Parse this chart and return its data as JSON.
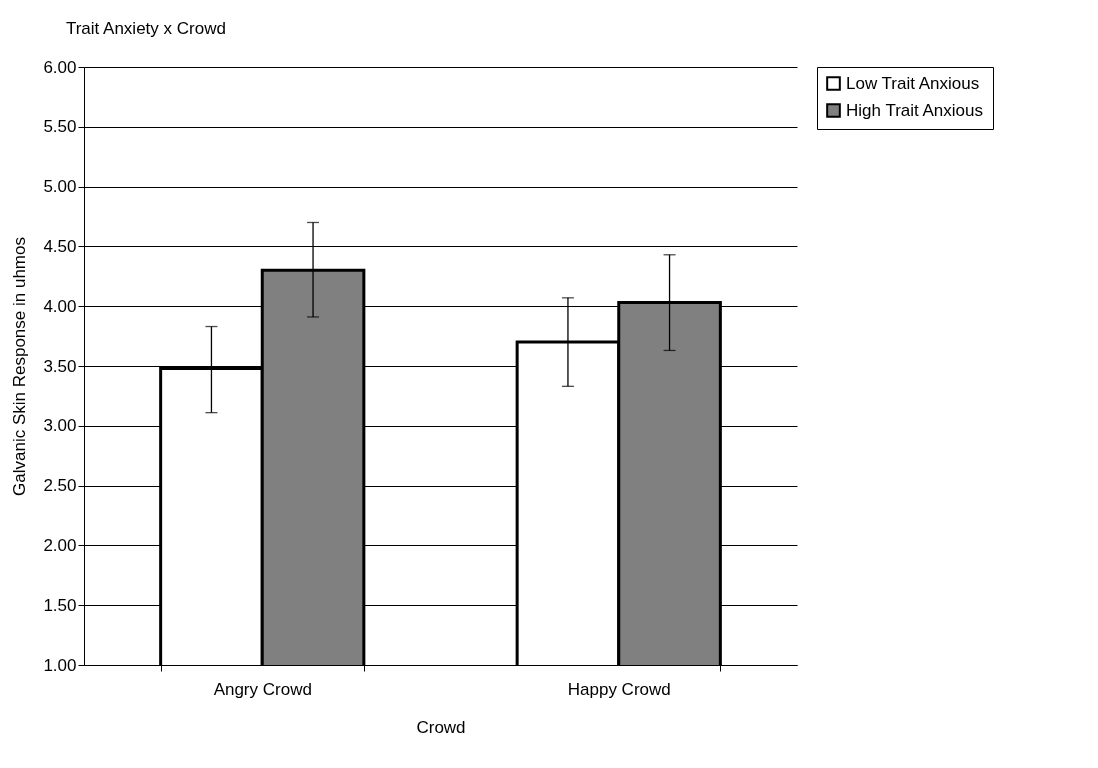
{
  "chart_data": {
    "type": "bar",
    "title": "Trait Anxiety x Crowd",
    "xlabel": "Crowd",
    "ylabel": "Galvanic Skin Response in uhmos",
    "categories": [
      "Angry Crowd",
      "Happy Crowd"
    ],
    "series": [
      {
        "name": "Low Trait Anxious",
        "color": "#ffffff",
        "values": [
          3.48,
          3.7
        ],
        "errors": [
          [
            3.11,
            3.83
          ],
          [
            3.33,
            4.07
          ]
        ]
      },
      {
        "name": "High Trait Anxious",
        "color": "#808080",
        "values": [
          4.3,
          4.03
        ],
        "errors": [
          [
            3.91,
            4.7
          ],
          [
            3.63,
            4.43
          ]
        ]
      }
    ],
    "ylim": [
      1,
      6
    ],
    "yticks": [
      {
        "value": 1,
        "label": "1.00"
      },
      {
        "value": 1.5,
        "label": "1.50"
      },
      {
        "value": 2,
        "label": "2.00"
      },
      {
        "value": 2.5,
        "label": "2.50"
      },
      {
        "value": 3,
        "label": "3.00"
      },
      {
        "value": 3.5,
        "label": "3.50"
      },
      {
        "value": 4,
        "label": "4.00"
      },
      {
        "value": 4.5,
        "label": "4.50"
      },
      {
        "value": 5,
        "label": "5.00"
      },
      {
        "value": 5.5,
        "label": "5.50"
      },
      {
        "value": 6,
        "label": "6.00"
      }
    ],
    "grid": "y",
    "legend": "right"
  }
}
